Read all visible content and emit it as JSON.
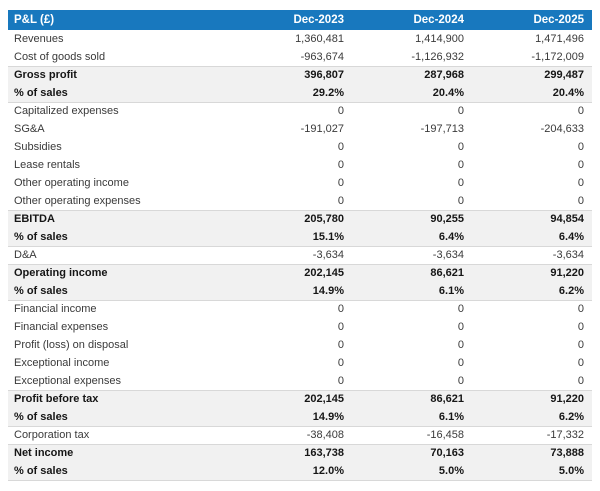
{
  "colors": {
    "header_bg": "#1878be",
    "header_text": "#ffffff",
    "shaded_row_bg": "#f1f1f1",
    "row_divider": "#d8d8d8",
    "text": "#3a3a3a",
    "bold_text": "#161616"
  },
  "table": {
    "headers": [
      "P&L (£)",
      "Dec-2023",
      "Dec-2024",
      "Dec-2025"
    ],
    "rows": [
      {
        "label": "Revenues",
        "values": [
          "1,360,481",
          "1,414,900",
          "1,471,496"
        ],
        "emphasis": false
      },
      {
        "label": "Cost of goods sold",
        "values": [
          "-963,674",
          "-1,126,932",
          "-1,172,009"
        ],
        "emphasis": false
      },
      {
        "label": "Gross profit",
        "values": [
          "396,807",
          "287,968",
          "299,487"
        ],
        "emphasis": true
      },
      {
        "label": "% of sales",
        "values": [
          "29.2%",
          "20.4%",
          "20.4%"
        ],
        "emphasis": true
      },
      {
        "label": "Capitalized expenses",
        "values": [
          "0",
          "0",
          "0"
        ],
        "emphasis": false
      },
      {
        "label": "SG&A",
        "values": [
          "-191,027",
          "-197,713",
          "-204,633"
        ],
        "emphasis": false
      },
      {
        "label": "Subsidies",
        "values": [
          "0",
          "0",
          "0"
        ],
        "emphasis": false
      },
      {
        "label": "Lease rentals",
        "values": [
          "0",
          "0",
          "0"
        ],
        "emphasis": false
      },
      {
        "label": "Other operating income",
        "values": [
          "0",
          "0",
          "0"
        ],
        "emphasis": false
      },
      {
        "label": "Other operating expenses",
        "values": [
          "0",
          "0",
          "0"
        ],
        "emphasis": false
      },
      {
        "label": "EBITDA",
        "values": [
          "205,780",
          "90,255",
          "94,854"
        ],
        "emphasis": true
      },
      {
        "label": "% of sales",
        "values": [
          "15.1%",
          "6.4%",
          "6.4%"
        ],
        "emphasis": true
      },
      {
        "label": "D&A",
        "values": [
          "-3,634",
          "-3,634",
          "-3,634"
        ],
        "emphasis": false
      },
      {
        "label": "Operating income",
        "values": [
          "202,145",
          "86,621",
          "91,220"
        ],
        "emphasis": true
      },
      {
        "label": "% of sales",
        "values": [
          "14.9%",
          "6.1%",
          "6.2%"
        ],
        "emphasis": true
      },
      {
        "label": "Financial income",
        "values": [
          "0",
          "0",
          "0"
        ],
        "emphasis": false
      },
      {
        "label": "Financial expenses",
        "values": [
          "0",
          "0",
          "0"
        ],
        "emphasis": false
      },
      {
        "label": "Profit (loss) on disposal",
        "values": [
          "0",
          "0",
          "0"
        ],
        "emphasis": false
      },
      {
        "label": "Exceptional income",
        "values": [
          "0",
          "0",
          "0"
        ],
        "emphasis": false
      },
      {
        "label": "Exceptional expenses",
        "values": [
          "0",
          "0",
          "0"
        ],
        "emphasis": false
      },
      {
        "label": "Profit before tax",
        "values": [
          "202,145",
          "86,621",
          "91,220"
        ],
        "emphasis": true
      },
      {
        "label": "% of sales",
        "values": [
          "14.9%",
          "6.1%",
          "6.2%"
        ],
        "emphasis": true
      },
      {
        "label": "Corporation tax",
        "values": [
          "-38,408",
          "-16,458",
          "-17,332"
        ],
        "emphasis": false
      },
      {
        "label": "Net income",
        "values": [
          "163,738",
          "70,163",
          "73,888"
        ],
        "emphasis": true
      },
      {
        "label": "% of sales",
        "values": [
          "12.0%",
          "5.0%",
          "5.0%"
        ],
        "emphasis": true
      }
    ]
  },
  "chart_data": {
    "type": "table",
    "title": "P&L (£)",
    "columns": [
      "P&L (£)",
      "Dec-2023",
      "Dec-2024",
      "Dec-2025"
    ],
    "rows": [
      {
        "label": "Revenues",
        "values": [
          1360481,
          1414900,
          1471496
        ]
      },
      {
        "label": "Cost of goods sold",
        "values": [
          -963674,
          -1126932,
          -1172009
        ]
      },
      {
        "label": "Gross profit",
        "values": [
          396807,
          287968,
          299487
        ]
      },
      {
        "label": "Gross profit % of sales",
        "values": [
          29.2,
          20.4,
          20.4
        ],
        "unit": "%"
      },
      {
        "label": "Capitalized expenses",
        "values": [
          0,
          0,
          0
        ]
      },
      {
        "label": "SG&A",
        "values": [
          -191027,
          -197713,
          -204633
        ]
      },
      {
        "label": "Subsidies",
        "values": [
          0,
          0,
          0
        ]
      },
      {
        "label": "Lease rentals",
        "values": [
          0,
          0,
          0
        ]
      },
      {
        "label": "Other operating income",
        "values": [
          0,
          0,
          0
        ]
      },
      {
        "label": "Other operating expenses",
        "values": [
          0,
          0,
          0
        ]
      },
      {
        "label": "EBITDA",
        "values": [
          205780,
          90255,
          94854
        ]
      },
      {
        "label": "EBITDA % of sales",
        "values": [
          15.1,
          6.4,
          6.4
        ],
        "unit": "%"
      },
      {
        "label": "D&A",
        "values": [
          -3634,
          -3634,
          -3634
        ]
      },
      {
        "label": "Operating income",
        "values": [
          202145,
          86621,
          91220
        ]
      },
      {
        "label": "Operating income % of sales",
        "values": [
          14.9,
          6.1,
          6.2
        ],
        "unit": "%"
      },
      {
        "label": "Financial income",
        "values": [
          0,
          0,
          0
        ]
      },
      {
        "label": "Financial expenses",
        "values": [
          0,
          0,
          0
        ]
      },
      {
        "label": "Profit (loss) on disposal",
        "values": [
          0,
          0,
          0
        ]
      },
      {
        "label": "Exceptional income",
        "values": [
          0,
          0,
          0
        ]
      },
      {
        "label": "Exceptional expenses",
        "values": [
          0,
          0,
          0
        ]
      },
      {
        "label": "Profit before tax",
        "values": [
          202145,
          86621,
          91220
        ]
      },
      {
        "label": "Profit before tax % of sales",
        "values": [
          14.9,
          6.1,
          6.2
        ],
        "unit": "%"
      },
      {
        "label": "Corporation tax",
        "values": [
          -38408,
          -16458,
          -17332
        ]
      },
      {
        "label": "Net income",
        "values": [
          163738,
          70163,
          73888
        ]
      },
      {
        "label": "Net income % of sales",
        "values": [
          12.0,
          5.0,
          5.0
        ],
        "unit": "%"
      }
    ]
  }
}
